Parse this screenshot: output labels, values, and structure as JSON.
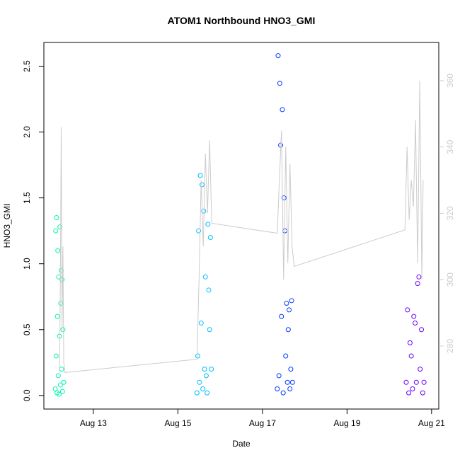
{
  "chart_data": {
    "type": "scatter",
    "title": "ATOM1 Northbound HNO3_GMI",
    "xlabel": "Date",
    "ylabel": "HNO3_GMI",
    "xlim": [
      11.83,
      21.17
    ],
    "xticks": [
      {
        "value": 13,
        "label": "Aug 13"
      },
      {
        "value": 15,
        "label": "Aug 15"
      },
      {
        "value": 17,
        "label": "Aug 17"
      },
      {
        "value": 19,
        "label": "Aug 19"
      },
      {
        "value": 21,
        "label": "Aug 21"
      }
    ],
    "ylim": [
      -0.103,
      2.68
    ],
    "yticks": [
      {
        "value": 0,
        "label": "0.0"
      },
      0.5,
      {
        "value": 1,
        "label": "1.0"
      },
      1.5,
      {
        "value": 2,
        "label": "2.0"
      },
      2.5
    ],
    "y2lim": [
      261,
      371.5
    ],
    "y2ticks": [
      280,
      300,
      320,
      340,
      360
    ],
    "y2color": "#cccccc",
    "series": [
      {
        "color": "#00f5b0",
        "x": [
          12.1,
          12.11,
          12.12,
          12.13,
          12.14,
          12.15,
          12.16,
          12.17,
          12.18,
          12.19,
          12.2,
          12.21,
          12.22,
          12.23,
          12.24,
          12.25,
          12.26,
          12.27,
          12.28,
          12.3
        ],
        "values": [
          0.05,
          1.25,
          0.3,
          1.35,
          0.02,
          0.6,
          1.1,
          0.15,
          0.9,
          0.01,
          0.45,
          1.28,
          0.08,
          0.7,
          0.95,
          0.2,
          0.88,
          0.03,
          0.5,
          0.1
        ]
      },
      {
        "color": "#00bfff",
        "x": [
          15.45,
          15.47,
          15.49,
          15.51,
          15.53,
          15.55,
          15.57,
          15.59,
          15.61,
          15.63,
          15.65,
          15.67,
          15.69,
          15.71,
          15.73,
          15.75,
          15.77,
          15.79
        ],
        "values": [
          0.02,
          0.3,
          1.25,
          0.1,
          1.67,
          0.55,
          1.6,
          0.05,
          1.4,
          0.2,
          0.9,
          0.15,
          0.02,
          1.3,
          0.8,
          0.5,
          1.2,
          0.2
        ]
      },
      {
        "color": "#0038ff",
        "x": [
          17.35,
          17.37,
          17.39,
          17.41,
          17.43,
          17.45,
          17.47,
          17.49,
          17.51,
          17.53,
          17.55,
          17.57,
          17.59,
          17.61,
          17.63,
          17.65,
          17.67,
          17.69,
          17.71
        ],
        "values": [
          0.05,
          2.58,
          0.15,
          2.37,
          1.9,
          0.6,
          2.17,
          0.02,
          1.5,
          1.25,
          0.3,
          0.7,
          0.1,
          0.5,
          0.65,
          0.05,
          0.2,
          0.72,
          0.1
        ]
      },
      {
        "color": "#6a00ff",
        "x": [
          20.4,
          20.43,
          20.46,
          20.49,
          20.52,
          20.55,
          20.58,
          20.61,
          20.64,
          20.67,
          20.7,
          20.73,
          20.76,
          20.79,
          20.82
        ],
        "values": [
          0.1,
          0.65,
          0.02,
          0.4,
          0.3,
          0.05,
          0.6,
          0.55,
          0.1,
          0.85,
          0.9,
          0.2,
          0.5,
          0.02,
          0.1
        ]
      },
      {
        "type": "line",
        "axis": "y2",
        "color": "#cccccc",
        "x": [
          12.2,
          12.22,
          12.24,
          12.26,
          12.28,
          12.3,
          12.33,
          15.45,
          15.5,
          15.55,
          15.6,
          15.65,
          15.7,
          15.75,
          15.8,
          17.35,
          17.4,
          17.45,
          17.5,
          17.55,
          17.6,
          17.65,
          17.7,
          17.75,
          20.37,
          20.42,
          20.47,
          20.52,
          20.57,
          20.62,
          20.67,
          20.72,
          20.77,
          20.8
        ],
        "values": [
          272,
          300,
          346,
          285,
          310,
          275,
          272,
          276,
          300,
          330,
          310,
          338,
          320,
          342,
          317,
          314,
          330,
          345,
          300,
          340,
          305,
          335,
          310,
          304,
          315,
          340,
          318,
          330,
          322,
          348,
          305,
          360,
          300,
          330
        ]
      }
    ]
  }
}
